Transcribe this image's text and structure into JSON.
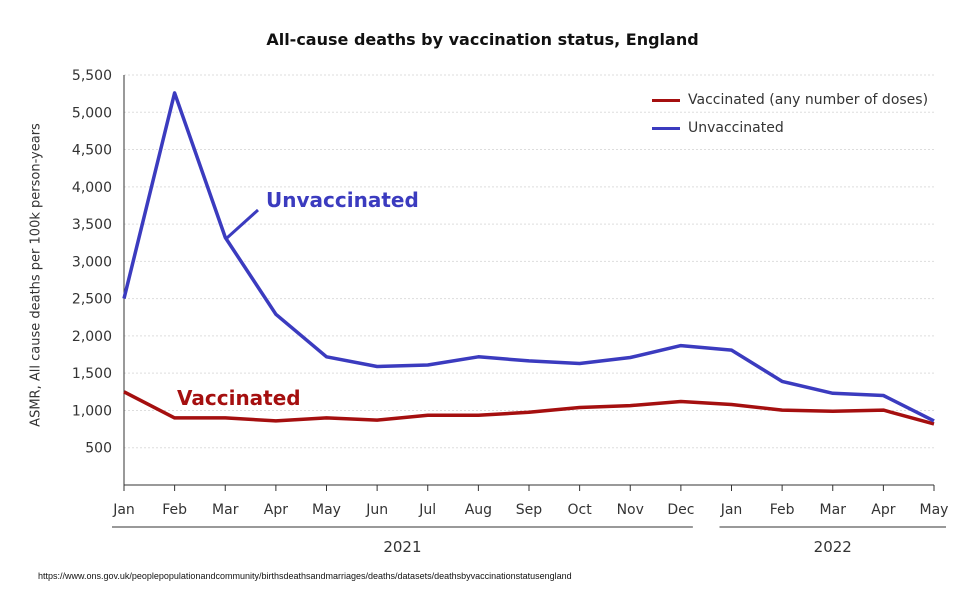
{
  "chart_data": {
    "type": "line",
    "title": "All-cause deaths by vaccination status, England",
    "ylabel": "ASMR, All cause deaths per 100k person-years",
    "xlabel": "",
    "ylim": [
      0,
      5500
    ],
    "yticks": [
      "500",
      "1,000",
      "1,500",
      "2,000",
      "2,500",
      "3,000",
      "3,500",
      "4,000",
      "4,500",
      "5,000",
      "5,500"
    ],
    "ytick_values": [
      500,
      1000,
      1500,
      2000,
      2500,
      3000,
      3500,
      4000,
      4500,
      5000,
      5500
    ],
    "categories": [
      "Jan",
      "Feb",
      "Mar",
      "Apr",
      "May",
      "Jun",
      "Jul",
      "Aug",
      "Sep",
      "Oct",
      "Nov",
      "Dec",
      "Jan",
      "Feb",
      "Mar",
      "Apr",
      "May"
    ],
    "year_groups": [
      {
        "label": "2021",
        "from": 0,
        "to": 11
      },
      {
        "label": "2022",
        "from": 12,
        "to": 16
      }
    ],
    "grid": true,
    "legend_position": "top-right",
    "series": [
      {
        "name": "Vaccinated (any number of doses)",
        "color": "#a50f0f",
        "values": [
          1250,
          900,
          900,
          860,
          900,
          870,
          935,
          935,
          975,
          1040,
          1065,
          1120,
          1080,
          1005,
          990,
          1005,
          820
        ]
      },
      {
        "name": "Unvaccinated",
        "color": "#3b3bbf",
        "values": [
          2500,
          5260,
          3320,
          2290,
          1720,
          1590,
          1610,
          1720,
          1665,
          1630,
          1710,
          1870,
          1810,
          1390,
          1230,
          1200,
          860
        ]
      }
    ],
    "annotations": [
      {
        "text": "Unvaccinated",
        "color": "#3b3bbf"
      },
      {
        "text": "Vaccinated",
        "color": "#a50f0f"
      }
    ]
  },
  "source_text": "https://www.ons.gov.uk/peoplepopulationandcommunity/birthsdeathsandmarriages/deaths/datasets/deathsbyvaccinationstatusengland"
}
